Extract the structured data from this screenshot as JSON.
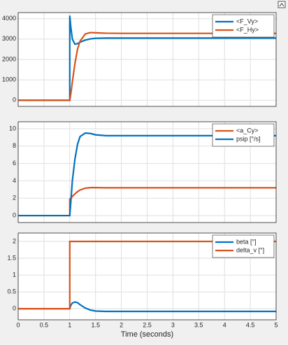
{
  "chart_data": [
    {
      "type": "line",
      "x": [
        0,
        1,
        1,
        1.02,
        1.05,
        1.1,
        1.15,
        1.2,
        1.3,
        1.4,
        1.5,
        1.7,
        2,
        3,
        4,
        5
      ],
      "series": [
        {
          "name": "<F_Vy>",
          "color": "#0072bd",
          "values": [
            0,
            0,
            4150,
            3600,
            3000,
            2750,
            2780,
            2850,
            2950,
            3010,
            3040,
            3050,
            3050,
            3050,
            3050,
            3050
          ]
        },
        {
          "name": "<F_Hy>",
          "color": "#d95319",
          "values": [
            0,
            0,
            0,
            300,
            900,
            1800,
            2500,
            2900,
            3250,
            3320,
            3310,
            3290,
            3280,
            3280,
            3280,
            3280
          ]
        }
      ],
      "xlim": [
        0,
        5
      ],
      "xticks": [
        0,
        0.5,
        1,
        1.5,
        2,
        2.5,
        3,
        3.5,
        4,
        4.5,
        5
      ],
      "ylim": [
        -300,
        4300
      ],
      "yticks": [
        0,
        1000,
        2000,
        3000,
        4000
      ],
      "grid": true,
      "legend": "top-right"
    },
    {
      "type": "line",
      "x": [
        0,
        1,
        1,
        1.02,
        1.05,
        1.1,
        1.15,
        1.2,
        1.3,
        1.4,
        1.5,
        1.7,
        2,
        3,
        4,
        5
      ],
      "series": [
        {
          "name": "<a_Cy>",
          "color": "#d95319",
          "values": [
            0,
            0,
            1.9,
            2.0,
            2.2,
            2.5,
            2.75,
            2.95,
            3.15,
            3.22,
            3.22,
            3.2,
            3.2,
            3.2,
            3.2,
            3.2
          ]
        },
        {
          "name": "psip [°/s]",
          "color": "#0072bd",
          "values": [
            0,
            0,
            0,
            1.5,
            4,
            6.5,
            8.2,
            9.1,
            9.5,
            9.45,
            9.3,
            9.2,
            9.2,
            9.2,
            9.2,
            9.2
          ]
        }
      ],
      "xlim": [
        0,
        5
      ],
      "xticks": [
        0,
        0.5,
        1,
        1.5,
        2,
        2.5,
        3,
        3.5,
        4,
        4.5,
        5
      ],
      "ylim": [
        -0.8,
        10.8
      ],
      "yticks": [
        0,
        2,
        4,
        6,
        8,
        10
      ],
      "grid": true,
      "legend": "top-right"
    },
    {
      "type": "line",
      "x": [
        0,
        1,
        1,
        1.02,
        1.05,
        1.1,
        1.15,
        1.2,
        1.3,
        1.4,
        1.5,
        1.7,
        2,
        3,
        4,
        5
      ],
      "series": [
        {
          "name": "beta [°]",
          "color": "#0072bd",
          "values": [
            0,
            0,
            0,
            0.1,
            0.17,
            0.2,
            0.18,
            0.12,
            0.02,
            -0.04,
            -0.07,
            -0.08,
            -0.08,
            -0.08,
            -0.08,
            -0.08
          ]
        },
        {
          "name": "delta_v [°]",
          "color": "#d95319",
          "values": [
            0,
            0,
            2,
            2,
            2,
            2,
            2,
            2,
            2,
            2,
            2,
            2,
            2,
            2,
            2,
            2
          ]
        }
      ],
      "xlim": [
        0,
        5
      ],
      "xticks": [
        0,
        0.5,
        1,
        1.5,
        2,
        2.5,
        3,
        3.5,
        4,
        4.5,
        5
      ],
      "ylim": [
        -0.33,
        2.25
      ],
      "yticks": [
        0,
        0.5,
        1,
        1.5,
        2
      ],
      "xlabel": "Time (seconds)",
      "grid": true,
      "legend": "top-right"
    }
  ]
}
